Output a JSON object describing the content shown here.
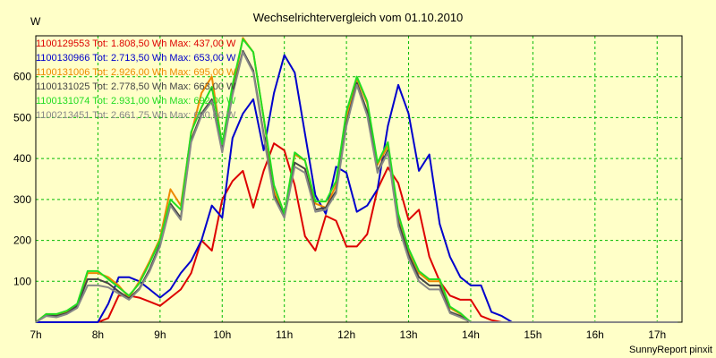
{
  "chart_data": {
    "type": "line",
    "title": "Wechselrichtervergleich vom 01.10.2010",
    "ylabel": "W",
    "xlabel": "",
    "credit": "SunnyReport pinxit",
    "ylim": [
      0,
      700
    ],
    "xlim": [
      7,
      17.4
    ],
    "grid": true,
    "yticks": [
      100,
      200,
      300,
      400,
      500,
      600
    ],
    "xticks": [
      {
        "value": 7,
        "label": "7h"
      },
      {
        "value": 8,
        "label": "8h"
      },
      {
        "value": 9,
        "label": "9h"
      },
      {
        "value": 10,
        "label": "10h"
      },
      {
        "value": 11,
        "label": "11h"
      },
      {
        "value": 12,
        "label": "12h"
      },
      {
        "value": 13,
        "label": "13h"
      },
      {
        "value": 14,
        "label": "14h"
      },
      {
        "value": 15,
        "label": "15h"
      },
      {
        "value": 16,
        "label": "16h"
      },
      {
        "value": 17,
        "label": "17h"
      }
    ],
    "x": [
      7,
      7.1667,
      7.3333,
      7.5,
      7.6667,
      7.8333,
      8,
      8.1667,
      8.3333,
      8.5,
      8.6667,
      8.8333,
      9,
      9.1667,
      9.3333,
      9.5,
      9.6667,
      9.8333,
      10,
      10.1667,
      10.3333,
      10.5,
      10.6667,
      10.8333,
      11,
      11.1667,
      11.3333,
      11.5,
      11.6667,
      11.8333,
      12,
      12.1667,
      12.3333,
      12.5,
      12.6667,
      12.8333,
      13,
      13.1667,
      13.3333,
      13.5,
      13.6667,
      13.8333,
      14,
      14.1667,
      14.3333,
      14.5,
      14.6667,
      14.8333,
      15,
      15.1667,
      15.3333,
      15.5,
      15.6667,
      15.8333,
      16,
      16.1667,
      16.3333,
      16.5,
      16.6667,
      16.8333,
      17,
      17.1667,
      17.3333
    ],
    "series": [
      {
        "name": "1100129553",
        "legend": "1100129553 Tot: 1.808,50 Wh Max: 437,00 W",
        "color": "#dd0000",
        "values": [
          0,
          0,
          0,
          0,
          0,
          0,
          0,
          10,
          65,
          65,
          60,
          50,
          40,
          60,
          80,
          120,
          200,
          175,
          300,
          345,
          370,
          280,
          370,
          437,
          420,
          335,
          210,
          175,
          260,
          248,
          185,
          185,
          215,
          325,
          378,
          340,
          250,
          275,
          160,
          100,
          65,
          55,
          55,
          15,
          5,
          0,
          0,
          0,
          0,
          0,
          0,
          0,
          0,
          0,
          0,
          0,
          0,
          0,
          0,
          0,
          0,
          0,
          0
        ]
      },
      {
        "name": "1100130966",
        "legend": "1100130966 Tot: 2.713,50 Wh Max: 653,00 W",
        "color": "#0000cc",
        "values": [
          0,
          0,
          0,
          0,
          0,
          0,
          0,
          45,
          110,
          110,
          100,
          80,
          60,
          80,
          120,
          150,
          200,
          285,
          255,
          450,
          510,
          545,
          420,
          560,
          653,
          610,
          460,
          310,
          265,
          380,
          365,
          270,
          285,
          325,
          480,
          580,
          510,
          370,
          410,
          240,
          160,
          110,
          90,
          90,
          25,
          15,
          0,
          0,
          0,
          0,
          0,
          0,
          0,
          0,
          0,
          0,
          0,
          0,
          0,
          0,
          0,
          0,
          0
        ]
      },
      {
        "name": "1100131006",
        "legend": "1100131006 Tot: 2.926,00 Wh Max: 695,00 W",
        "color": "#ee8800",
        "values": [
          0,
          20,
          18,
          25,
          40,
          120,
          120,
          110,
          90,
          60,
          100,
          150,
          205,
          325,
          285,
          460,
          560,
          600,
          430,
          565,
          695,
          660,
          500,
          320,
          260,
          410,
          395,
          290,
          280,
          335,
          500,
          595,
          535,
          385,
          430,
          255,
          175,
          120,
          100,
          100,
          35,
          20,
          0,
          0,
          0,
          0,
          0,
          0,
          0,
          0,
          0,
          0,
          0,
          0,
          0,
          0,
          0,
          0,
          0,
          0,
          0,
          0,
          0
        ]
      },
      {
        "name": "1100131025",
        "legend": "1100131025 Tot: 2.778,50 Wh Max: 663,00 W",
        "color": "#444444",
        "values": [
          0,
          18,
          15,
          22,
          40,
          105,
          105,
          95,
          75,
          58,
          82,
          130,
          190,
          290,
          255,
          445,
          510,
          545,
          420,
          560,
          663,
          615,
          460,
          310,
          260,
          390,
          375,
          275,
          280,
          320,
          485,
          585,
          515,
          370,
          420,
          245,
          165,
          110,
          90,
          90,
          25,
          15,
          0,
          0,
          0,
          0,
          0,
          0,
          0,
          0,
          0,
          0,
          0,
          0,
          0,
          0,
          0,
          0,
          0,
          0,
          0,
          0,
          0
        ]
      },
      {
        "name": "1100131074",
        "legend": "1100131074 Tot: 2.931,00 Wh Max: 692,00 W",
        "color": "#22dd22",
        "values": [
          0,
          20,
          20,
          28,
          45,
          125,
          125,
          105,
          85,
          65,
          95,
          145,
          200,
          300,
          275,
          465,
          525,
          575,
          435,
          580,
          692,
          660,
          500,
          335,
          265,
          415,
          395,
          295,
          295,
          345,
          515,
          600,
          540,
          390,
          440,
          265,
          180,
          125,
          105,
          105,
          38,
          22,
          0,
          0,
          0,
          0,
          0,
          0,
          0,
          0,
          0,
          0,
          0,
          0,
          0,
          0,
          0,
          0,
          0,
          0,
          0,
          0,
          0
        ]
      },
      {
        "name": "1100213451",
        "legend": "1100213451 Tot: 2.661,75 Wh Max: 660,00 W",
        "color": "#888888",
        "values": [
          0,
          15,
          12,
          20,
          35,
          90,
          90,
          85,
          70,
          55,
          80,
          125,
          185,
          285,
          250,
          440,
          505,
          540,
          415,
          555,
          660,
          610,
          455,
          305,
          255,
          380,
          365,
          270,
          275,
          315,
          480,
          580,
          505,
          365,
          415,
          235,
          155,
          100,
          80,
          80,
          22,
          12,
          0,
          0,
          0,
          0,
          0,
          0,
          0,
          0,
          0,
          0,
          0,
          0,
          0,
          0,
          0,
          0,
          0,
          0,
          0,
          0,
          0
        ]
      }
    ]
  }
}
